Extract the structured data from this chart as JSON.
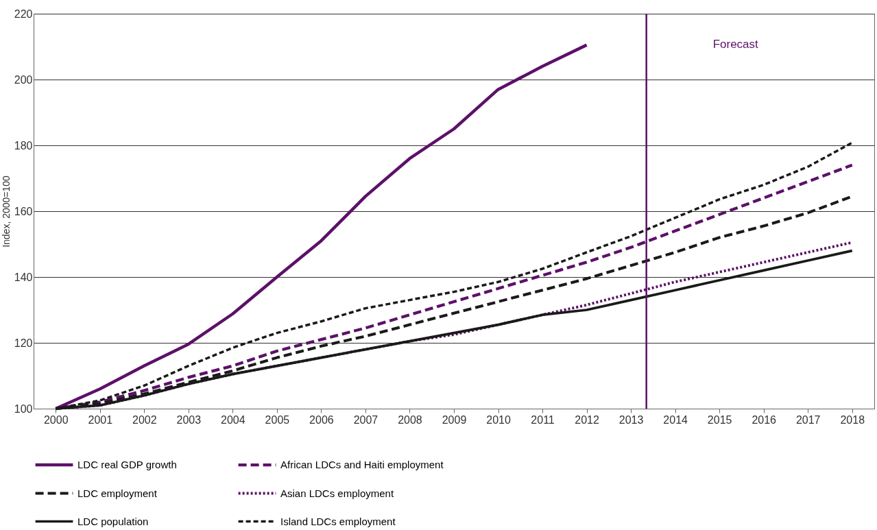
{
  "chart_data": {
    "type": "line",
    "ylabel": "Index, 2000=100",
    "x": [
      2000,
      2001,
      2002,
      2003,
      2004,
      2005,
      2006,
      2007,
      2008,
      2009,
      2010,
      2011,
      2012,
      2013,
      2014,
      2015,
      2016,
      2017,
      2018
    ],
    "xlim": [
      1999.5,
      2018.5
    ],
    "xticks": [
      2000,
      2001,
      2002,
      2003,
      2004,
      2005,
      2006,
      2007,
      2008,
      2009,
      2010,
      2011,
      2012,
      2013,
      2014,
      2015,
      2016,
      2017,
      2018
    ],
    "ylim": [
      100,
      220
    ],
    "yticks": [
      100,
      120,
      140,
      160,
      180,
      200,
      220
    ],
    "grid": "y",
    "legend": "bottom",
    "marker": "none",
    "series": [
      {
        "name": "LDC real GDP growth",
        "color": "#5c1168",
        "line_style": "solid",
        "values": [
          100,
          106,
          113,
          119.6,
          128.8,
          140,
          151,
          164.5,
          176,
          185,
          197,
          204,
          210.5,
          null,
          null,
          null,
          null,
          null,
          null
        ]
      },
      {
        "name": "African LDCs and  Haiti employment",
        "color": "#5c1168",
        "line_style": "dashed",
        "values": [
          100,
          102,
          105.5,
          109.5,
          113,
          117.5,
          121,
          124.5,
          128.5,
          132.5,
          136.5,
          140.5,
          144.5,
          149,
          154,
          159,
          164,
          169,
          174
        ]
      },
      {
        "name": "LDC employment",
        "color": "#1a1a1a",
        "line_style": "dashed",
        "values": [
          100,
          101.5,
          104.5,
          108,
          111.5,
          115.5,
          119,
          122,
          125.5,
          129,
          132.5,
          136,
          139.5,
          143.5,
          147.5,
          152,
          155.5,
          159.5,
          164.5
        ]
      },
      {
        "name": "Asian LDCs employment",
        "color": "#5c1168",
        "line_style": "dotted",
        "values": [
          100,
          101,
          104,
          107.5,
          110.5,
          113,
          115.5,
          118,
          120.5,
          122.5,
          125.5,
          128.5,
          131.5,
          135,
          138.5,
          141.5,
          144.5,
          147.5,
          150.5
        ]
      },
      {
        "name": "LDC population",
        "color": "#1a1a1a",
        "line_style": "solid",
        "values": [
          100,
          101,
          104,
          107.5,
          110.5,
          113,
          115.5,
          118,
          120.5,
          123,
          125.5,
          128.5,
          130,
          133,
          136,
          139,
          142,
          145,
          148
        ]
      },
      {
        "name": "Island LDCs employment",
        "color": "#1a1a1a",
        "line_style": "dashed",
        "values": [
          100,
          102.5,
          107,
          113,
          118.5,
          123,
          126.5,
          130.5,
          133,
          135.5,
          138.5,
          142.5,
          147.5,
          152.4,
          158,
          163.6,
          168,
          173.5,
          180.8
        ]
      }
    ],
    "ref_lines": [
      {
        "axis": "x",
        "value": 2013.35,
        "color": "#5c1168"
      }
    ],
    "annotations": [
      "Forecast"
    ]
  }
}
